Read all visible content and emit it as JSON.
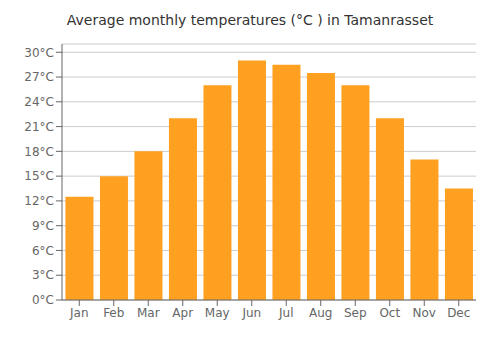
{
  "chart_data": {
    "type": "bar",
    "title": "Average monthly temperatures (°C ) in Tamanrasset",
    "categories": [
      "Jan",
      "Feb",
      "Mar",
      "Apr",
      "May",
      "Jun",
      "Jul",
      "Aug",
      "Sep",
      "Oct",
      "Nov",
      "Dec"
    ],
    "values": [
      12.5,
      15.0,
      18.0,
      22.0,
      26.0,
      29.0,
      28.5,
      27.5,
      26.0,
      22.0,
      17.0,
      13.5
    ],
    "color": "#FFA020",
    "ylim": [
      0,
      31
    ],
    "yticks": [
      {
        "value": 0,
        "label": "0°C"
      },
      {
        "value": 3,
        "label": "3°C"
      },
      {
        "value": 6,
        "label": "6°C"
      },
      {
        "value": 9,
        "label": "9°C"
      },
      {
        "value": 12,
        "label": "12°C"
      },
      {
        "value": 15,
        "label": "15°C"
      },
      {
        "value": 18,
        "label": "18°C"
      },
      {
        "value": 21,
        "label": "21°C"
      },
      {
        "value": 24,
        "label": "24°C"
      },
      {
        "value": 27,
        "label": "27°C"
      },
      {
        "value": 30,
        "label": "30°C"
      }
    ],
    "grid": true
  }
}
